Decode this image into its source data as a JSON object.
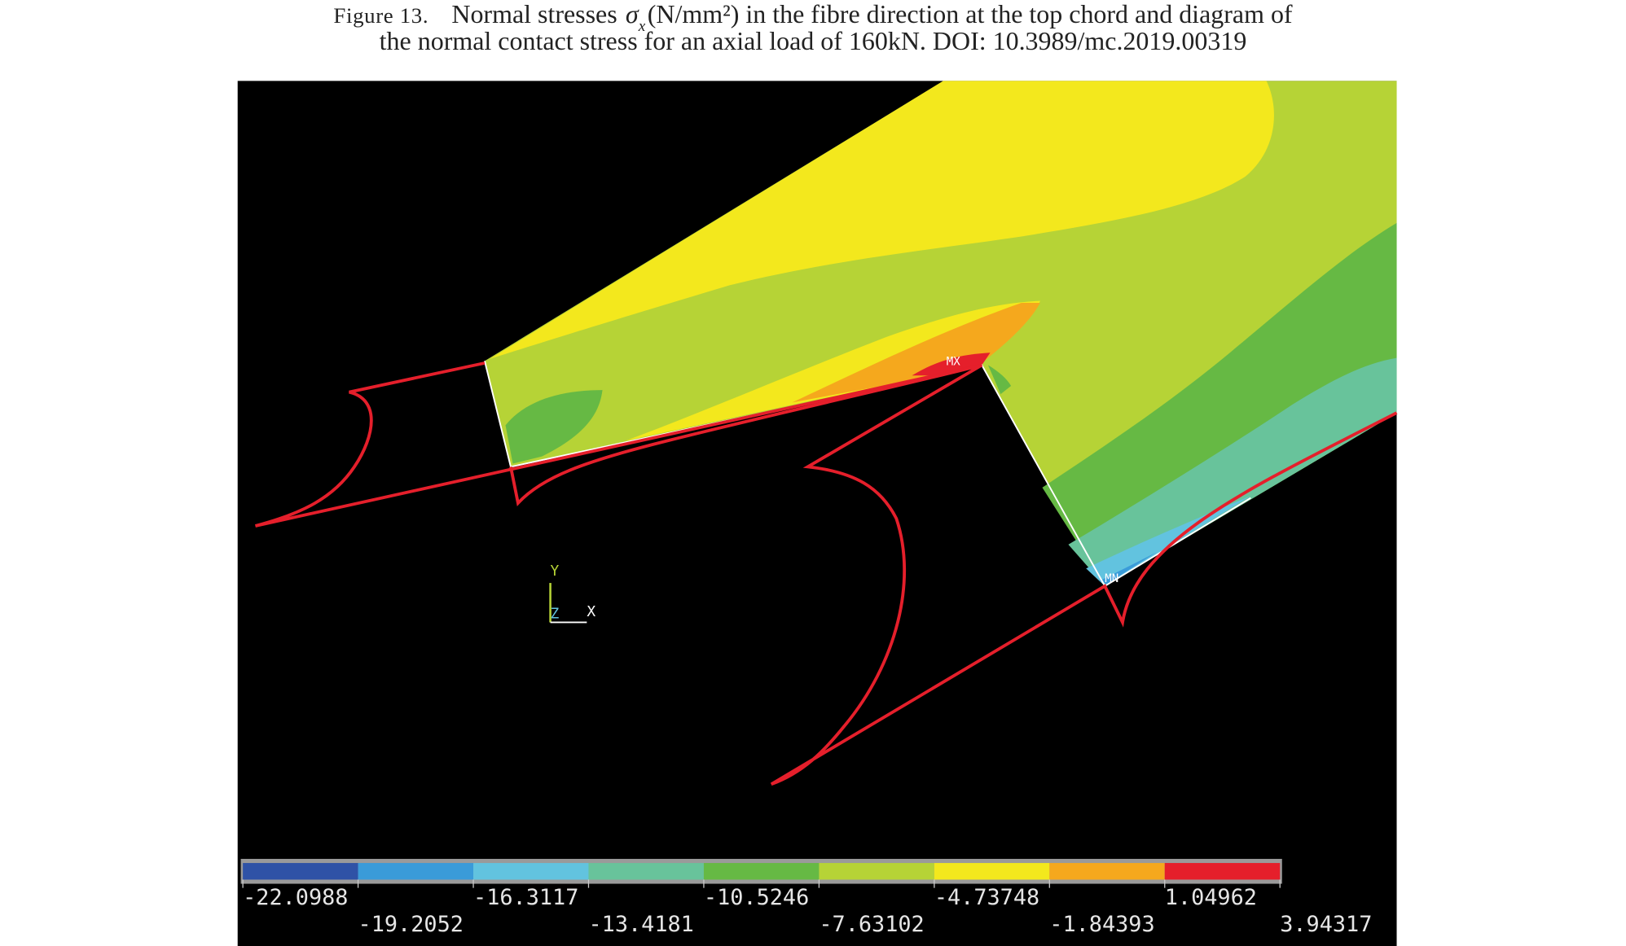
{
  "figure": {
    "caption": {
      "label": "Figure 13.",
      "text_before": "Normal stresses",
      "symbol": "σ",
      "subscript": "x",
      "line1_after": "(N/mm²) in the fibre direction at the top chord and diagram of",
      "line2": "the normal contact stress for an axial load of 160kN. DOI: 10.3989/mc.2019.00319"
    },
    "plot": {
      "max_tag": "MX",
      "min_tag": "MN",
      "axis_labels": {
        "y": "Y",
        "x": "X",
        "z": "Z"
      }
    },
    "colorbar": {
      "colors": [
        "#2f52a6",
        "#3a9bd9",
        "#62c3df",
        "#68c39b",
        "#66b944",
        "#b6d336",
        "#f3e81d",
        "#f5a81d",
        "#e51f2b"
      ],
      "labels": [
        "-22.0988",
        "-19.2052",
        "-16.3117",
        "-13.4181",
        "-10.5246",
        "-7.63102",
        "-4.73748",
        "-1.84393",
        "1.04962",
        "3.94317"
      ]
    }
  }
}
